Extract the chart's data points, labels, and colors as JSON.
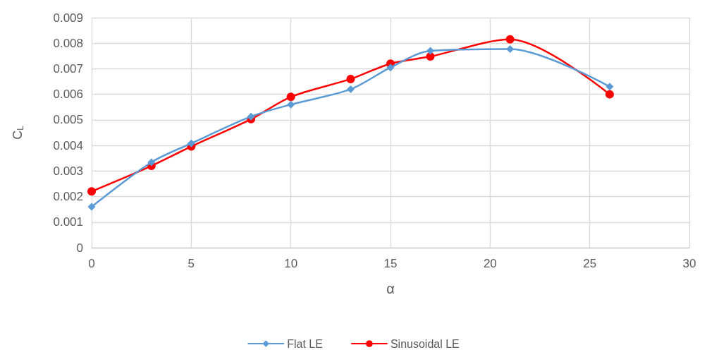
{
  "chart_data": {
    "type": "line",
    "xlabel": "α",
    "ylabel": "C$_{L}$",
    "x": [
      0,
      3,
      5,
      8,
      10,
      13,
      15,
      17,
      21,
      26
    ],
    "xlim": [
      0,
      30
    ],
    "xticks": [
      0,
      5,
      10,
      15,
      20,
      25,
      30
    ],
    "ylim": [
      0,
      0.009
    ],
    "yticks": [
      0,
      0.001,
      0.002,
      0.003,
      0.004,
      0.005,
      0.006,
      0.007,
      0.008,
      0.009
    ],
    "grid": true,
    "legend": "bottom",
    "line_style": "solid",
    "series": [
      {
        "name": "Flat LE",
        "color": "#5b9bd5",
        "marker": "diamond",
        "values": [
          0.0016,
          0.00334,
          0.00408,
          0.00513,
          0.0056,
          0.0062,
          0.00705,
          0.0077,
          0.00777,
          0.0063
        ]
      },
      {
        "name": "Sinusoidal LE",
        "color": "#ff0000",
        "marker": "circle",
        "values": [
          0.0022,
          0.0032,
          0.00396,
          0.00503,
          0.0059,
          0.0066,
          0.0072,
          0.00748,
          0.00815,
          0.006
        ]
      }
    ]
  }
}
